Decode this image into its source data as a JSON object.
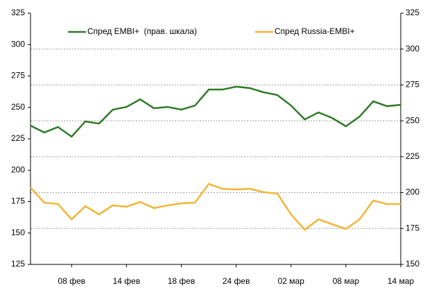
{
  "chart_data": {
    "type": "line",
    "categories": [
      null,
      null,
      null,
      "08 фев",
      null,
      null,
      null,
      "14 фев",
      null,
      null,
      null,
      "18 фев",
      null,
      null,
      null,
      "24 фев",
      null,
      null,
      null,
      "02 мар",
      null,
      null,
      null,
      "08 мар",
      null,
      null,
      null,
      "14 мар"
    ],
    "series": [
      {
        "name": "Спред EMBI+  (прав. шкала)",
        "color": "#2e7a26",
        "axis": "y2",
        "values": [
          246.7,
          241.9,
          245.7,
          239.0,
          249.6,
          248.1,
          257.8,
          259.7,
          265.0,
          258.8,
          259.7,
          257.8,
          260.7,
          271.8,
          271.8,
          273.8,
          272.8,
          269.9,
          268.0,
          260.7,
          251.0,
          255.9,
          252.0,
          246.2,
          253.0,
          263.6,
          260.2,
          261.2
        ]
      },
      {
        "name": "Спред Russia-EMBI+",
        "color": "#f5b335",
        "values": [
          186.3,
          174.2,
          173.1,
          160.9,
          171.4,
          164.8,
          172.0,
          170.9,
          174.7,
          169.8,
          172.0,
          173.6,
          174.2,
          189.1,
          185.2,
          184.7,
          185.2,
          182.5,
          181.4,
          164.8,
          152.6,
          160.9,
          157.0,
          153.2,
          160.9,
          175.8,
          173.1,
          173.1
        ]
      }
    ],
    "ylim": [
      125,
      325
    ],
    "yticks": [
      125,
      150,
      175,
      200,
      225,
      250,
      275,
      300,
      325
    ],
    "y2lim": [
      150,
      325
    ],
    "y2ticks": [
      150,
      175,
      200,
      225,
      250,
      275,
      300,
      325
    ],
    "grid": true
  }
}
